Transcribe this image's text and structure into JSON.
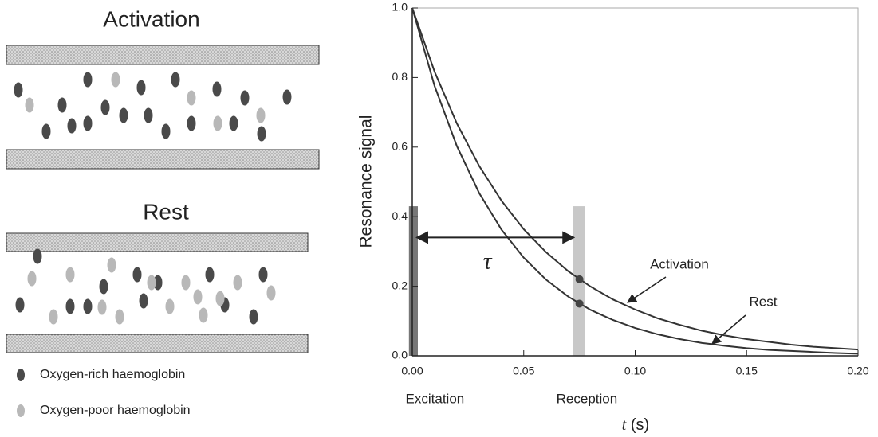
{
  "diagram": {
    "top_title": "Activation",
    "bottom_title": "Rest",
    "legend": [
      "Oxygen-rich haemoglobin",
      "Oxygen-poor haemoglobin"
    ]
  },
  "chart_data": {
    "type": "line",
    "y_label": "Resonance signal",
    "x_label": {
      "variable": "t",
      "unit": "(s)"
    },
    "x": [
      0,
      0.01,
      0.02,
      0.03,
      0.04,
      0.05,
      0.06,
      0.07,
      0.08,
      0.09,
      0.1,
      0.11,
      0.12,
      0.13,
      0.14,
      0.15,
      0.16,
      0.17,
      0.18,
      0.19,
      0.2
    ],
    "series": [
      {
        "name": "Activation",
        "color": "#333333",
        "values": [
          1.0,
          0.817,
          0.668,
          0.546,
          0.446,
          0.364,
          0.298,
          0.243,
          0.199,
          0.162,
          0.133,
          0.108,
          0.089,
          0.072,
          0.059,
          0.048,
          0.04,
          0.032,
          0.026,
          0.022,
          0.018
        ]
      },
      {
        "name": "Rest",
        "color": "#333333",
        "values": [
          1.0,
          0.776,
          0.603,
          0.468,
          0.363,
          0.282,
          0.219,
          0.17,
          0.132,
          0.103,
          0.08,
          0.062,
          0.048,
          0.037,
          0.029,
          0.022,
          0.017,
          0.014,
          0.011,
          0.008,
          0.006
        ]
      }
    ],
    "points": [
      {
        "x": 0.075,
        "y": 0.22
      },
      {
        "x": 0.075,
        "y": 0.15
      }
    ],
    "bands": [
      {
        "label": "Excitation",
        "x": [
          -0.0015,
          0.0025
        ],
        "y": 0.43,
        "color": "#777777",
        "label_color": "#333333"
      },
      {
        "label": "Reception",
        "x": [
          0.072,
          0.0775
        ],
        "y": 0.43,
        "color": "#c8c8c8",
        "label_color": "#aaaaaa"
      }
    ],
    "interval": {
      "label": "τ",
      "x": [
        0.002,
        0.0725
      ],
      "y": 0.34
    },
    "xlim": [
      0,
      0.2
    ],
    "ylim": [
      0,
      1
    ],
    "xticks": [
      {
        "value": 0,
        "label": "0.00"
      },
      {
        "value": 0.05,
        "label": "0.05"
      },
      {
        "value": 0.1,
        "label": "0.10"
      },
      {
        "value": 0.15,
        "label": "0.15"
      },
      {
        "value": 0.2,
        "label": "0.20"
      }
    ],
    "yticks": [
      {
        "value": 0,
        "label": "0.0"
      },
      0.2,
      0.4,
      0.6,
      0.8,
      {
        "value": 1,
        "label": "1.0"
      }
    ]
  }
}
